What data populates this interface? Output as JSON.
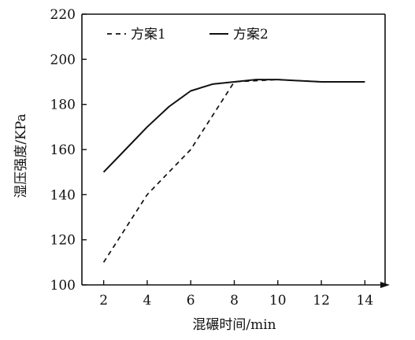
{
  "chart_data": {
    "type": "line",
    "title": "",
    "xlabel": "混碾时间/min",
    "ylabel": "湿压强度/KPa",
    "xlim": [
      1,
      15
    ],
    "ylim": [
      100,
      220
    ],
    "x_ticks": [
      2,
      4,
      6,
      8,
      10,
      12,
      14
    ],
    "y_ticks": [
      100,
      120,
      140,
      160,
      180,
      200,
      220
    ],
    "grid": false,
    "legend_position": "top-left",
    "series": [
      {
        "name": "方案1",
        "style": "dashed",
        "color": "#111111",
        "points": [
          [
            2,
            110
          ],
          [
            4,
            140
          ],
          [
            6,
            160
          ],
          [
            8,
            190
          ],
          [
            10,
            191
          ],
          [
            12,
            190
          ],
          [
            14,
            190
          ]
        ]
      },
      {
        "name": "方案2",
        "style": "solid",
        "color": "#111111",
        "points": [
          [
            2,
            150
          ],
          [
            3,
            160
          ],
          [
            4,
            170
          ],
          [
            5,
            179
          ],
          [
            6,
            186
          ],
          [
            7,
            189
          ],
          [
            8,
            190
          ],
          [
            9,
            191
          ],
          [
            10,
            191
          ],
          [
            11,
            190.5
          ],
          [
            12,
            190
          ],
          [
            13,
            190
          ],
          [
            14,
            190
          ]
        ]
      }
    ]
  }
}
